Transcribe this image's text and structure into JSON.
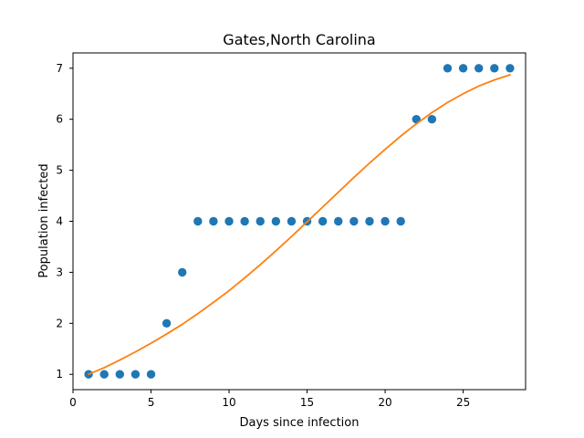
{
  "chart_data": {
    "type": "scatter",
    "title": "Gates,North Carolina",
    "xlabel": "Days since infection",
    "ylabel": "Population infected",
    "xlim": [
      0,
      29
    ],
    "ylim": [
      0.7,
      7.3
    ],
    "xticks": [
      0,
      5,
      10,
      15,
      20,
      25
    ],
    "yticks": [
      1,
      2,
      3,
      4,
      5,
      6,
      7
    ],
    "grid": false,
    "colors": {
      "points": "#1f77b4",
      "fit": "#ff7f0e"
    },
    "series": [
      {
        "kind": "scatter",
        "x": [
          1,
          2,
          3,
          4,
          5,
          6,
          7,
          8,
          9,
          10,
          11,
          12,
          13,
          14,
          15,
          16,
          17,
          18,
          19,
          20,
          21,
          22,
          23,
          24,
          25,
          26,
          27,
          28
        ],
        "y": [
          1,
          1,
          1,
          1,
          1,
          2,
          3,
          4,
          4,
          4,
          4,
          4,
          4,
          4,
          4,
          4,
          4,
          4,
          4,
          4,
          4,
          6,
          6,
          7,
          7,
          7,
          7,
          7
        ]
      },
      {
        "kind": "line",
        "x": [
          1,
          2,
          3,
          4,
          5,
          6,
          7,
          8,
          9,
          10,
          11,
          12,
          13,
          14,
          15,
          16,
          17,
          18,
          19,
          20,
          21,
          22,
          23,
          24,
          25,
          26,
          27,
          28
        ],
        "y": [
          1.0,
          1.13,
          1.28,
          1.44,
          1.61,
          1.79,
          1.98,
          2.19,
          2.41,
          2.64,
          2.89,
          3.15,
          3.42,
          3.7,
          3.99,
          4.28,
          4.57,
          4.86,
          5.14,
          5.41,
          5.67,
          5.91,
          6.13,
          6.33,
          6.5,
          6.65,
          6.77,
          6.87
        ]
      }
    ]
  }
}
